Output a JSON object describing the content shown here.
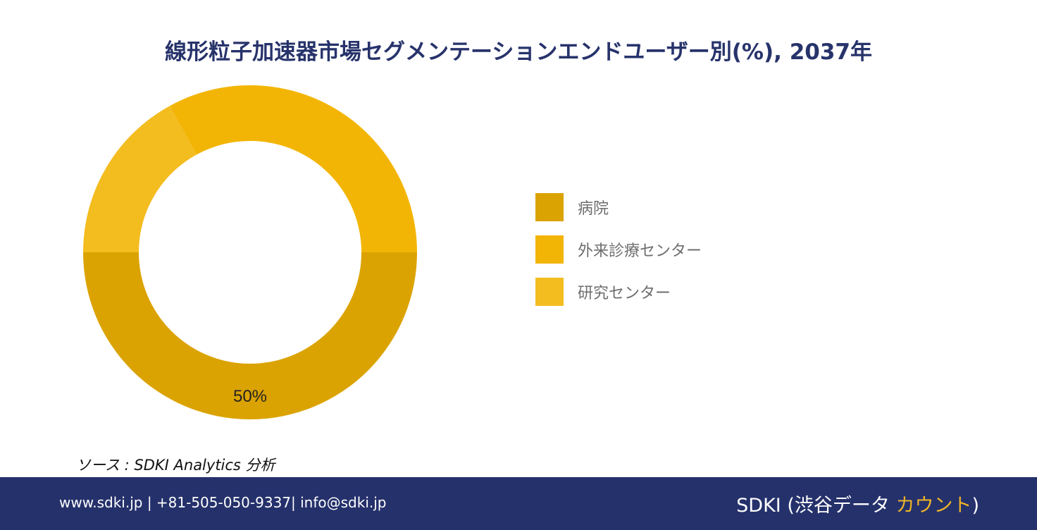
{
  "title": "線形粒子加速器市場セグメンテーションエンドユーザー別(%), 2037年",
  "chart_data": {
    "type": "pie",
    "title": "線形粒子加速器市場セグメンテーションエンドユーザー別(%), 2037年",
    "categories": [
      "病院",
      "外来診療センター",
      "研究センター"
    ],
    "values": [
      50,
      33,
      17
    ],
    "colors": [
      "#dba302",
      "#f3b505",
      "#f3bc1f"
    ],
    "data_labels": [
      "50%",
      "",
      ""
    ],
    "donut": true,
    "legend_position": "right"
  },
  "legend": {
    "items": [
      {
        "label": "病院",
        "color": "#dba302"
      },
      {
        "label": "外来診療センター",
        "color": "#f3b505"
      },
      {
        "label": "研究センター",
        "color": "#f3bc1f"
      }
    ]
  },
  "source": "ソース : SDKI Analytics 分析",
  "footer": {
    "contact": "www.sdki.jp | +81-505-050-9337| info@sdki.jp",
    "brand_prefix": "SDKI (渋谷データ ",
    "brand_accent": "カウント",
    "brand_suffix": ")"
  }
}
